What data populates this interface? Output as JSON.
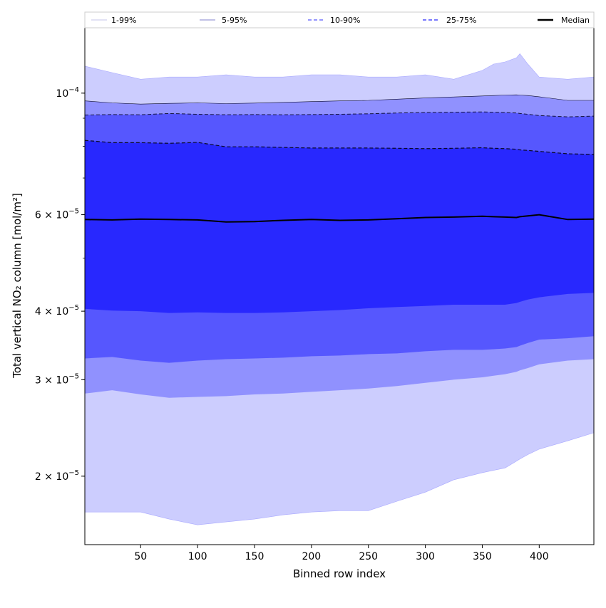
{
  "chart_data": {
    "type": "area",
    "title": "",
    "xlabel": "Binned row index",
    "ylabel": "Total vertical NO₂ column [mol/m²]",
    "xlim": [
      1,
      448
    ],
    "ylim": [
      1.5e-05,
      0.000132
    ],
    "yscale": "log",
    "grid": false,
    "legend_position": "top",
    "x_ticks": [
      50,
      100,
      150,
      200,
      250,
      300,
      350,
      400
    ],
    "y_ticks": [
      {
        "value": 0.0001,
        "base": "10",
        "exp": "−4",
        "coef": ""
      },
      {
        "value": 6e-05,
        "base": "10",
        "exp": "−5",
        "coef": "6"
      },
      {
        "value": 4e-05,
        "base": "10",
        "exp": "−5",
        "coef": "4"
      },
      {
        "value": 3e-05,
        "base": "10",
        "exp": "−5",
        "coef": "3"
      },
      {
        "value": 2e-05,
        "base": "10",
        "exp": "−5",
        "coef": "2"
      }
    ],
    "x": [
      1,
      25,
      50,
      75,
      100,
      125,
      150,
      175,
      200,
      225,
      250,
      275,
      300,
      325,
      350,
      360,
      370,
      380,
      383,
      390,
      400,
      425,
      448
    ],
    "series": [
      {
        "name": "1-99%",
        "color": "#cccdfe",
        "line_color": "#aaaaff",
        "linestyle": "solid",
        "linewidth": 0.6,
        "lower": [
          1.72e-05,
          1.72e-05,
          1.72e-05,
          1.67e-05,
          1.63e-05,
          1.65e-05,
          1.67e-05,
          1.7e-05,
          1.72e-05,
          1.73e-05,
          1.73e-05,
          1.8e-05,
          1.87e-05,
          1.97e-05,
          2.03e-05,
          2.05e-05,
          2.07e-05,
          2.13e-05,
          2.15e-05,
          2.19e-05,
          2.24e-05,
          2.32e-05,
          2.4e-05
        ],
        "upper": [
          0.000112,
          0.000109,
          0.000106,
          0.000107,
          0.000107,
          0.000108,
          0.000107,
          0.000107,
          0.000108,
          0.000108,
          0.000107,
          0.000107,
          0.000108,
          0.000106,
          0.00011,
          0.000113,
          0.000114,
          0.000116,
          0.000118,
          0.000113,
          0.000107,
          0.000106,
          0.000107
        ]
      },
      {
        "name": "5-95%",
        "color": "#9091fe",
        "line_color": "#0a0a2a",
        "linestyle": "solid",
        "linewidth": 0.6,
        "lower": [
          2.83e-05,
          2.87e-05,
          2.82e-05,
          2.78e-05,
          2.79e-05,
          2.8e-05,
          2.82e-05,
          2.83e-05,
          2.85e-05,
          2.87e-05,
          2.89e-05,
          2.92e-05,
          2.96e-05,
          3e-05,
          3.03e-05,
          3.05e-05,
          3.07e-05,
          3.1e-05,
          3.12e-05,
          3.15e-05,
          3.2e-05,
          3.25e-05,
          3.27e-05
        ],
        "upper": [
          9.68e-05,
          9.6e-05,
          9.55e-05,
          9.58e-05,
          9.6e-05,
          9.57e-05,
          9.59e-05,
          9.62e-05,
          9.65e-05,
          9.68e-05,
          9.7e-05,
          9.75e-05,
          9.8e-05,
          9.84e-05,
          9.88e-05,
          9.9e-05,
          9.92e-05,
          9.93e-05,
          9.92e-05,
          9.9e-05,
          9.85e-05,
          9.7e-05,
          9.7e-05
        ]
      },
      {
        "name": "10-90%",
        "color": "#5657fe",
        "line_color": "#14143c",
        "linestyle": "dashed",
        "linewidth": 1.0,
        "lower": [
          3.28e-05,
          3.3e-05,
          3.25e-05,
          3.22e-05,
          3.25e-05,
          3.27e-05,
          3.28e-05,
          3.29e-05,
          3.31e-05,
          3.32e-05,
          3.34e-05,
          3.35e-05,
          3.38e-05,
          3.4e-05,
          3.4e-05,
          3.41e-05,
          3.42e-05,
          3.44e-05,
          3.46e-05,
          3.5e-05,
          3.55e-05,
          3.57e-05,
          3.6e-05
        ],
        "upper": [
          9.12e-05,
          9.14e-05,
          9.13e-05,
          9.18e-05,
          9.15e-05,
          9.13e-05,
          9.14e-05,
          9.13e-05,
          9.14e-05,
          9.15e-05,
          9.17e-05,
          9.2e-05,
          9.22e-05,
          9.23e-05,
          9.24e-05,
          9.23e-05,
          9.22e-05,
          9.2e-05,
          9.18e-05,
          9.15e-05,
          9.1e-05,
          9.05e-05,
          9.08e-05
        ]
      },
      {
        "name": "25-75%",
        "color": "#2828fe",
        "line_color": "#0a0a28",
        "linestyle": "dashed",
        "linewidth": 1.2,
        "lower": [
          4.04e-05,
          4.01e-05,
          4e-05,
          3.97e-05,
          3.98e-05,
          3.97e-05,
          3.97e-05,
          3.98e-05,
          4e-05,
          4.02e-05,
          4.05e-05,
          4.07e-05,
          4.09e-05,
          4.11e-05,
          4.11e-05,
          4.11e-05,
          4.11e-05,
          4.14e-05,
          4.16e-05,
          4.2e-05,
          4.24e-05,
          4.3e-05,
          4.32e-05
        ],
        "upper": [
          8.2e-05,
          8.12e-05,
          8.12e-05,
          8.1e-05,
          8.13e-05,
          7.98e-05,
          7.98e-05,
          7.96e-05,
          7.94e-05,
          7.94e-05,
          7.94e-05,
          7.93e-05,
          7.92e-05,
          7.93e-05,
          7.95e-05,
          7.93e-05,
          7.92e-05,
          7.9e-05,
          7.88e-05,
          7.86e-05,
          7.83e-05,
          7.75e-05,
          7.73e-05
        ]
      },
      {
        "name": "Median",
        "color": "#000000",
        "line_color": "#000000",
        "linestyle": "solid",
        "linewidth": 2.0,
        "values": [
          5.88e-05,
          5.87e-05,
          5.89e-05,
          5.88e-05,
          5.87e-05,
          5.82e-05,
          5.83e-05,
          5.86e-05,
          5.88e-05,
          5.86e-05,
          5.87e-05,
          5.9e-05,
          5.93e-05,
          5.94e-05,
          5.96e-05,
          5.95e-05,
          5.94e-05,
          5.93e-05,
          5.95e-05,
          5.97e-05,
          6e-05,
          5.88e-05,
          5.89e-05
        ]
      }
    ]
  }
}
